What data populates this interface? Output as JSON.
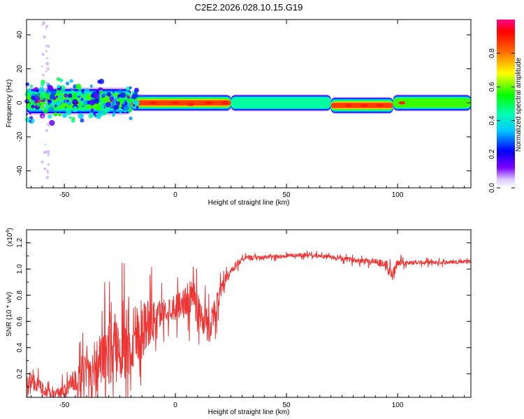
{
  "figure": {
    "title": "C2E2.2026.028.10.15.G19"
  },
  "chart_data": [
    {
      "type": "heatmap",
      "name": "spectrogram",
      "xlabel": "Height of straight line (km)",
      "ylabel": "Frequency (Hz)",
      "xlim": [
        -67,
        133
      ],
      "ylim": [
        -50,
        49
      ],
      "xticks": [
        -50,
        0,
        50,
        100
      ],
      "xtick_labels": [
        "-50",
        "0",
        "50",
        "100"
      ],
      "yticks": [
        -40,
        -20,
        0,
        20,
        40
      ],
      "ytick_labels": [
        "-40",
        "-20",
        "0",
        "20",
        "40"
      ],
      "colorbar": {
        "label": "Normalized spectral amplitude",
        "range": [
          0,
          1
        ],
        "ticks": [
          0.0,
          0.2,
          0.4,
          0.6,
          0.8
        ],
        "tick_labels": [
          "0.0",
          "0.2",
          "0.4",
          "0.6",
          "0.8"
        ],
        "colormap": "rainbow"
      },
      "band_segments": [
        {
          "x0": -67,
          "x1": -20,
          "center": 1,
          "half_width": 4,
          "peak": 0.7
        },
        {
          "x0": -20,
          "x1": 25,
          "center": 0,
          "half_width": 2.5,
          "peak": 1.0
        },
        {
          "x0": 25,
          "x1": 70,
          "center": 0,
          "half_width": 2.5,
          "peak": 0.55
        },
        {
          "x0": 70,
          "x1": 98,
          "center": -1.5,
          "half_width": 2.5,
          "peak": 1.0
        },
        {
          "x0": 98,
          "x1": 133,
          "center": 0,
          "half_width": 2.5,
          "peak": 0.6
        }
      ]
    },
    {
      "type": "line",
      "name": "snr",
      "xlabel": "Height of straight line (km)",
      "ylabel": "SNR (10 * v/v)",
      "y_multiplier": "(x10",
      "y_multiplier_exp": "4",
      "y_multiplier_close": ")",
      "xlim": [
        -67,
        133
      ],
      "ylim": [
        0.02,
        1.3
      ],
      "xticks": [
        -50,
        0,
        50,
        100
      ],
      "xtick_labels": [
        "-50",
        "0",
        "50",
        "100"
      ],
      "yticks": [
        0.2,
        0.4,
        0.6,
        0.8,
        1.0,
        1.2
      ],
      "ytick_labels": [
        "0.2",
        "0.4",
        "0.6",
        "0.8",
        "1.0",
        "1.2"
      ],
      "color": "#ee3333",
      "series": [
        {
          "name": "SNR",
          "x": [
            -67,
            -62,
            -58,
            -55,
            -50,
            -45,
            -40,
            -35,
            -30,
            -25,
            -20,
            -15,
            -10,
            -5,
            0,
            5,
            8,
            10,
            15,
            20,
            25,
            30,
            40,
            50,
            60,
            70,
            80,
            90,
            95,
            98,
            100,
            105,
            110,
            120,
            133
          ],
          "y": [
            0.15,
            0.12,
            0.06,
            0.04,
            0.08,
            0.14,
            0.22,
            0.28,
            0.35,
            0.42,
            0.48,
            0.55,
            0.62,
            0.68,
            0.72,
            0.76,
            0.8,
            0.7,
            0.55,
            0.8,
            0.98,
            1.08,
            1.09,
            1.1,
            1.11,
            1.09,
            1.07,
            1.06,
            1.03,
            0.95,
            1.05,
            1.05,
            1.05,
            1.05,
            1.06
          ],
          "noise": [
            0.08,
            0.06,
            0.04,
            0.03,
            0.06,
            0.1,
            0.15,
            0.2,
            0.25,
            0.3,
            0.3,
            0.25,
            0.15,
            0.1,
            0.1,
            0.12,
            0.15,
            0.15,
            0.12,
            0.08,
            0.04,
            0.02,
            0.015,
            0.015,
            0.015,
            0.015,
            0.02,
            0.025,
            0.04,
            0.06,
            0.03,
            0.015,
            0.015,
            0.015,
            0.015
          ]
        }
      ]
    }
  ]
}
